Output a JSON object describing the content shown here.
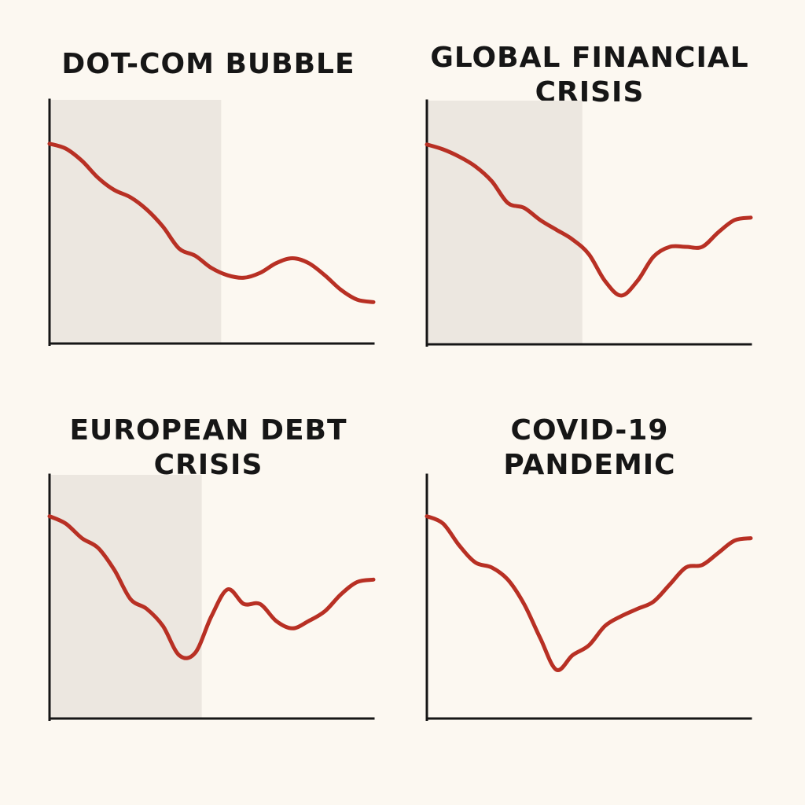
{
  "colors": {
    "background": "#FCF8F1",
    "line": "#B83024",
    "shade": "#ECE7E0",
    "axis": "#161616",
    "title": "#161616"
  },
  "chart_data": [
    {
      "type": "line",
      "title_lines": [
        "DOT-COM BUBBLE"
      ],
      "xlabel": "",
      "ylabel": "",
      "xlim": [
        0,
        1
      ],
      "ylim": [
        0,
        1
      ],
      "grid": false,
      "shaded_region": [
        0,
        0.53
      ],
      "series": [
        {
          "x": [
            0,
            0.05,
            0.1,
            0.15,
            0.2,
            0.25,
            0.3,
            0.35,
            0.4,
            0.45,
            0.5,
            0.55,
            0.6,
            0.65,
            0.7,
            0.75,
            0.8,
            0.85,
            0.9,
            0.95,
            1.0
          ],
          "values": [
            0.82,
            0.8,
            0.75,
            0.68,
            0.63,
            0.6,
            0.55,
            0.48,
            0.39,
            0.36,
            0.31,
            0.28,
            0.27,
            0.29,
            0.33,
            0.35,
            0.33,
            0.28,
            0.22,
            0.18,
            0.17
          ]
        }
      ]
    },
    {
      "type": "line",
      "title_lines": [
        "GLOBAL FINANCIAL",
        "CRISIS"
      ],
      "xlabel": "",
      "ylabel": "",
      "xlim": [
        0,
        1
      ],
      "ylim": [
        0,
        1
      ],
      "grid": false,
      "shaded_region": [
        0,
        0.48
      ],
      "series": [
        {
          "x": [
            0,
            0.05,
            0.1,
            0.15,
            0.2,
            0.25,
            0.3,
            0.35,
            0.4,
            0.45,
            0.5,
            0.55,
            0.6,
            0.65,
            0.7,
            0.75,
            0.8,
            0.85,
            0.9,
            0.95,
            1.0
          ],
          "values": [
            0.82,
            0.8,
            0.77,
            0.73,
            0.67,
            0.58,
            0.56,
            0.51,
            0.47,
            0.43,
            0.37,
            0.26,
            0.2,
            0.26,
            0.36,
            0.4,
            0.4,
            0.4,
            0.46,
            0.51,
            0.52
          ]
        }
      ]
    },
    {
      "type": "line",
      "title_lines": [
        "EUROPEAN DEBT",
        "CRISIS"
      ],
      "xlabel": "",
      "ylabel": "",
      "xlim": [
        0,
        1
      ],
      "ylim": [
        0,
        1
      ],
      "grid": false,
      "shaded_region": [
        0,
        0.47
      ],
      "series": [
        {
          "x": [
            0,
            0.05,
            0.1,
            0.15,
            0.2,
            0.25,
            0.3,
            0.35,
            0.4,
            0.45,
            0.5,
            0.55,
            0.6,
            0.65,
            0.7,
            0.75,
            0.8,
            0.85,
            0.9,
            0.95,
            1.0
          ],
          "values": [
            0.83,
            0.8,
            0.74,
            0.7,
            0.61,
            0.49,
            0.45,
            0.38,
            0.26,
            0.27,
            0.42,
            0.53,
            0.47,
            0.47,
            0.4,
            0.37,
            0.4,
            0.44,
            0.51,
            0.56,
            0.57
          ]
        }
      ]
    },
    {
      "type": "line",
      "title_lines": [
        "COVID-19",
        "PANDEMIC"
      ],
      "xlabel": "",
      "ylabel": "",
      "xlim": [
        0,
        1
      ],
      "ylim": [
        0,
        1
      ],
      "grid": false,
      "shaded_region": null,
      "series": [
        {
          "x": [
            0,
            0.05,
            0.1,
            0.15,
            0.2,
            0.25,
            0.3,
            0.35,
            0.4,
            0.45,
            0.5,
            0.55,
            0.6,
            0.65,
            0.7,
            0.75,
            0.8,
            0.85,
            0.9,
            0.95,
            1.0
          ],
          "values": [
            0.83,
            0.8,
            0.71,
            0.64,
            0.62,
            0.57,
            0.47,
            0.33,
            0.2,
            0.26,
            0.3,
            0.38,
            0.42,
            0.45,
            0.48,
            0.55,
            0.62,
            0.63,
            0.68,
            0.73,
            0.74
          ]
        }
      ]
    }
  ]
}
